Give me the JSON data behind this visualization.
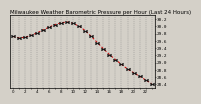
{
  "title": "Milwaukee Weather Barometric Pressure per Hour (Last 24 Hours)",
  "pressure_values": [
    29.72,
    29.68,
    29.7,
    29.75,
    29.82,
    29.9,
    29.98,
    30.05,
    30.1,
    30.12,
    30.08,
    30.0,
    29.88,
    29.72,
    29.55,
    29.38,
    29.22,
    29.08,
    28.95,
    28.82,
    28.72,
    28.62,
    28.52,
    28.42
  ],
  "hours": [
    0,
    1,
    2,
    3,
    4,
    5,
    6,
    7,
    8,
    9,
    10,
    11,
    12,
    13,
    14,
    15,
    16,
    17,
    18,
    19,
    20,
    21,
    22,
    23
  ],
  "hour_labels": [
    "0",
    "",
    "2",
    "",
    "4",
    "",
    "6",
    "",
    "8",
    "",
    "10",
    "",
    "12",
    "",
    "14",
    "",
    "16",
    "",
    "18",
    "",
    "20",
    "",
    "22",
    ""
  ],
  "line_color": "#cc0000",
  "marker_color": "#111111",
  "bg_color": "#d4d0c8",
  "plot_bg": "#d4d0c8",
  "grid_color": "#888888",
  "ylim_min": 28.3,
  "ylim_max": 30.3,
  "title_fontsize": 4.0,
  "tick_fontsize": 3.2,
  "ytick_values": [
    28.4,
    28.6,
    28.8,
    29.0,
    29.2,
    29.4,
    29.6,
    29.8,
    30.0,
    30.2
  ],
  "ytick_labels": [
    "28.4",
    "28.6",
    "28.8",
    "29.0",
    "29.2",
    "29.4",
    "29.6",
    "29.8",
    "30.0",
    "30.2"
  ]
}
